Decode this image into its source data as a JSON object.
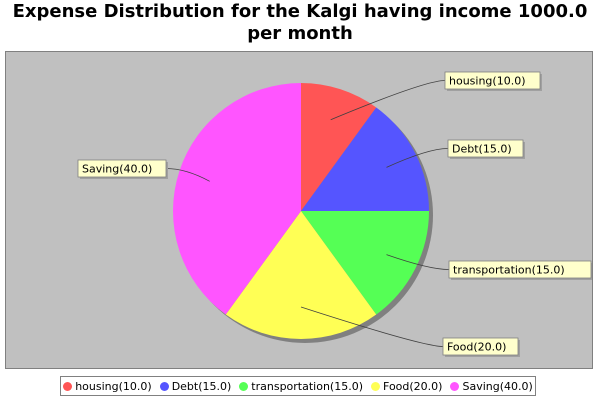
{
  "chart_data": {
    "type": "pie",
    "title": "Expense Distribution for the Kalgi having income 1000.0 per month",
    "title_lines": [
      "Expense Distribution for the Kalgi having income 1000.0",
      "per month"
    ],
    "slices": [
      {
        "name": "housing",
        "value": 10.0,
        "label": "housing(10.0)",
        "color": "#ff5555"
      },
      {
        "name": "Debt",
        "value": 15.0,
        "label": "Debt(15.0)",
        "color": "#5555ff"
      },
      {
        "name": "transportation",
        "value": 15.0,
        "label": "transportation(15.0)",
        "color": "#55ff55"
      },
      {
        "name": "Food",
        "value": 20.0,
        "label": "Food(20.0)",
        "color": "#ffff55"
      },
      {
        "name": "Saving",
        "value": 40.0,
        "label": "Saving(40.0)",
        "color": "#ff55ff"
      }
    ],
    "legend_position": "bottom",
    "plot_background": "#c0c0c0",
    "label_background": "#ffffcc"
  }
}
